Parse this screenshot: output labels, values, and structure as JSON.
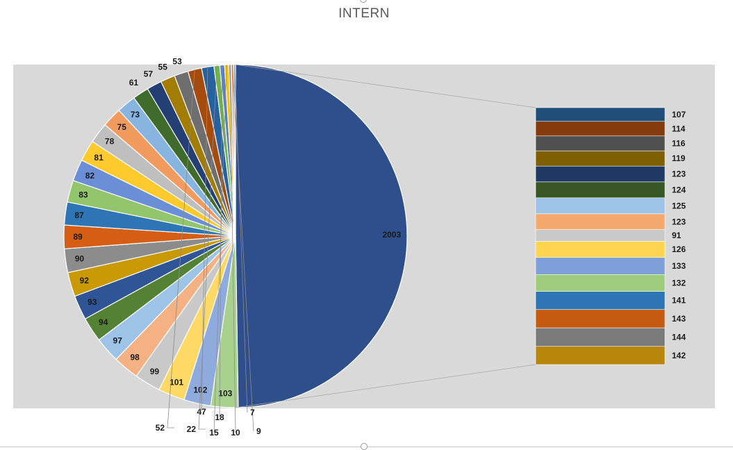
{
  "chart_data": {
    "type": "pie",
    "subtype": "bar-of-pie",
    "title": "INTERN",
    "pie": {
      "categories": [
        "2003",
        "103",
        "102",
        "101",
        "99",
        "98",
        "97",
        "94",
        "93",
        "92",
        "90",
        "89",
        "87",
        "83",
        "82",
        "81",
        "78",
        "75",
        "73",
        "61",
        "57",
        "55",
        "53",
        "52",
        "47",
        "22",
        "18",
        "15",
        "10",
        "9",
        "7"
      ],
      "values": [
        2003,
        103,
        102,
        101,
        99,
        98,
        97,
        94,
        93,
        92,
        90,
        89,
        87,
        83,
        82,
        81,
        78,
        75,
        73,
        61,
        57,
        55,
        53,
        52,
        47,
        22,
        18,
        15,
        10,
        9,
        7
      ],
      "colors": [
        "#2e4e8c",
        "#a9d18e",
        "#8faadc",
        "#ffd966",
        "#c9c9c9",
        "#f4b183",
        "#9dc3e6",
        "#548235",
        "#2f5597",
        "#c99a06",
        "#8c8c8c",
        "#d55d14",
        "#2e75b6",
        "#92c56c",
        "#6b8fd6",
        "#ffca2e",
        "#bfbfbf",
        "#f29b5e",
        "#87b5e0",
        "#3f6b2c",
        "#243f73",
        "#a27c04",
        "#6e6e6e",
        "#a64b0e",
        "#2662a0",
        "#74b04b",
        "#5b7fc7",
        "#ffc000",
        "#a6a6a6",
        "#ec8c4d",
        "#6fa8dc"
      ]
    },
    "bar": {
      "categories": [
        "107",
        "114",
        "116",
        "119",
        "123",
        "124",
        "125",
        "123",
        "91",
        "126",
        "133",
        "132",
        "141",
        "143",
        "144",
        "142"
      ],
      "values": [
        107,
        114,
        116,
        119,
        123,
        124,
        125,
        123,
        91,
        126,
        133,
        132,
        141,
        143,
        144,
        142
      ],
      "colors": [
        "#1f4e79",
        "#843c0c",
        "#505050",
        "#7f6000",
        "#203864",
        "#375623",
        "#9dc3e6",
        "#f4a96e",
        "#c9c9c9",
        "#ffd54f",
        "#7f9fd8",
        "#9ccc7c",
        "#2e75b6",
        "#c55a11",
        "#7a7a7a",
        "#b8860b"
      ]
    },
    "background": "#d9d9d9"
  }
}
